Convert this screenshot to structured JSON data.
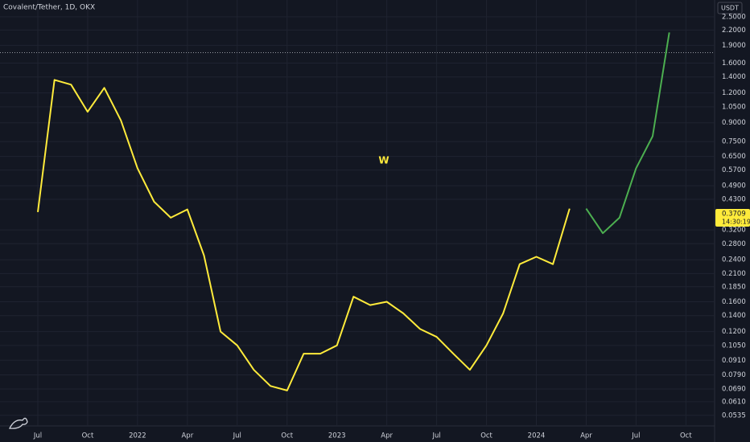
{
  "chart_data": {
    "type": "line",
    "title": "Covalent/Tether, 1D, OKX",
    "annotation": "W",
    "currency": "USDT",
    "last_price": 0.3709,
    "countdown": "14:30:19",
    "reference_line": 1.77,
    "log_scale": true,
    "grid": true,
    "x": [
      "2021-07",
      "2021-08",
      "2021-09",
      "2021-10",
      "2021-11",
      "2021-12",
      "2022-01",
      "2022-02",
      "2022-03",
      "2022-04",
      "2022-05",
      "2022-06",
      "2022-07",
      "2022-08",
      "2022-09",
      "2022-10",
      "2022-11",
      "2022-12",
      "2023-01",
      "2023-02",
      "2023-03",
      "2023-04",
      "2023-05",
      "2023-06",
      "2023-07",
      "2023-08",
      "2023-09",
      "2023-10",
      "2023-11",
      "2023-12",
      "2024-01",
      "2024-02",
      "2024-03",
      "2024-04",
      "2024-05",
      "2024-06",
      "2024-07",
      "2024-08",
      "2024-09"
    ],
    "series": [
      {
        "color": "#ffeb3b",
        "values": [
          0.38,
          1.36,
          1.3,
          1.0,
          1.26,
          0.92,
          0.58,
          0.42,
          0.36,
          0.39,
          0.25,
          0.12,
          0.105,
          0.083,
          0.071,
          0.068,
          0.097,
          0.097,
          0.105,
          0.168,
          0.155,
          0.16,
          0.143,
          0.123,
          0.114,
          0.097,
          0.083,
          0.105,
          0.143,
          0.23,
          0.247,
          0.23,
          0.393,
          null,
          null,
          null,
          null,
          null,
          null
        ]
      },
      {
        "color": "#4caf50",
        "values": [
          null,
          null,
          null,
          null,
          null,
          null,
          null,
          null,
          null,
          null,
          null,
          null,
          null,
          null,
          null,
          null,
          null,
          null,
          null,
          null,
          null,
          null,
          null,
          null,
          null,
          null,
          null,
          null,
          null,
          null,
          null,
          null,
          null,
          0.393,
          0.31,
          0.36,
          0.58,
          0.79,
          2.15
        ]
      }
    ],
    "xticks": [
      {
        "value": "2021-07",
        "label": "Jul"
      },
      {
        "value": "2021-10",
        "label": "Oct"
      },
      {
        "value": "2022-01",
        "label": "2022"
      },
      {
        "value": "2022-04",
        "label": "Apr"
      },
      {
        "value": "2022-07",
        "label": "Jul"
      },
      {
        "value": "2022-10",
        "label": "Oct"
      },
      {
        "value": "2023-01",
        "label": "2023"
      },
      {
        "value": "2023-04",
        "label": "Apr"
      },
      {
        "value": "2023-07",
        "label": "Jul"
      },
      {
        "value": "2023-10",
        "label": "Oct"
      },
      {
        "value": "2024-01",
        "label": "2024"
      },
      {
        "value": "2024-04",
        "label": "Apr"
      },
      {
        "value": "2024-07",
        "label": "Jul"
      },
      {
        "value": "2024-10",
        "label": "Oct"
      }
    ],
    "ylim": [
      0.0483,
      2.94
    ],
    "yticks": [
      {
        "value": 2.5,
        "label": "2.5000"
      },
      {
        "value": 2.2,
        "label": "2.2000"
      },
      {
        "value": 1.9,
        "label": "1.9000"
      },
      {
        "value": 1.6,
        "label": "1.6000"
      },
      {
        "value": 1.4,
        "label": "1.4000"
      },
      {
        "value": 1.2,
        "label": "1.2000"
      },
      {
        "value": 1.05,
        "label": "1.0500"
      },
      {
        "value": 0.9,
        "label": "0.9000"
      },
      {
        "value": 0.75,
        "label": "0.7500"
      },
      {
        "value": 0.65,
        "label": "0.6500"
      },
      {
        "value": 0.57,
        "label": "0.5700"
      },
      {
        "value": 0.49,
        "label": "0.4900"
      },
      {
        "value": 0.43,
        "label": "0.4300"
      },
      {
        "value": 0.32,
        "label": "0.3200"
      },
      {
        "value": 0.28,
        "label": "0.2800"
      },
      {
        "value": 0.24,
        "label": "0.2400"
      },
      {
        "value": 0.21,
        "label": "0.2100"
      },
      {
        "value": 0.185,
        "label": "0.1850"
      },
      {
        "value": 0.16,
        "label": "0.1600"
      },
      {
        "value": 0.14,
        "label": "0.1400"
      },
      {
        "value": 0.12,
        "label": "0.1200"
      },
      {
        "value": 0.105,
        "label": "0.1050"
      },
      {
        "value": 0.091,
        "label": "0.0910"
      },
      {
        "value": 0.079,
        "label": "0.0790"
      },
      {
        "value": 0.069,
        "label": "0.0690"
      },
      {
        "value": 0.061,
        "label": "0.0610"
      },
      {
        "value": 0.0535,
        "label": "0.0535"
      }
    ]
  }
}
